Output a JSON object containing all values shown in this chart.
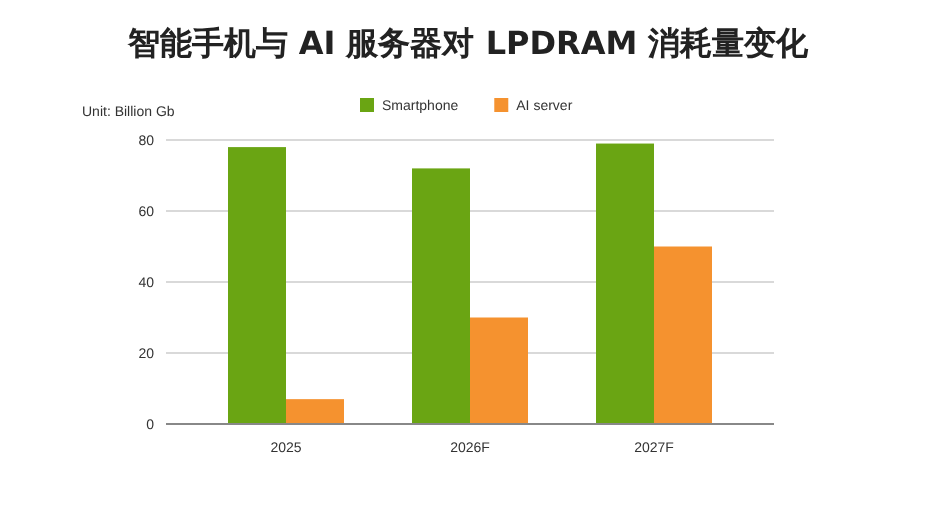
{
  "chart_data": {
    "type": "bar",
    "title": "智能手机与 AI 服务器对 LPDRAM 消耗量变化",
    "ylabel": "Unit: Billion Gb",
    "categories": [
      "2025",
      "2026F",
      "2027F"
    ],
    "series": [
      {
        "name": "Smartphone",
        "color": "#6aa513",
        "values": [
          78,
          72,
          79
        ]
      },
      {
        "name": "AI server",
        "color": "#f5922f",
        "values": [
          7,
          30,
          50
        ]
      }
    ],
    "ylim": [
      0,
      80
    ],
    "yticks": [
      0,
      20,
      40,
      60,
      80
    ],
    "grid": "y",
    "legend": "top"
  }
}
